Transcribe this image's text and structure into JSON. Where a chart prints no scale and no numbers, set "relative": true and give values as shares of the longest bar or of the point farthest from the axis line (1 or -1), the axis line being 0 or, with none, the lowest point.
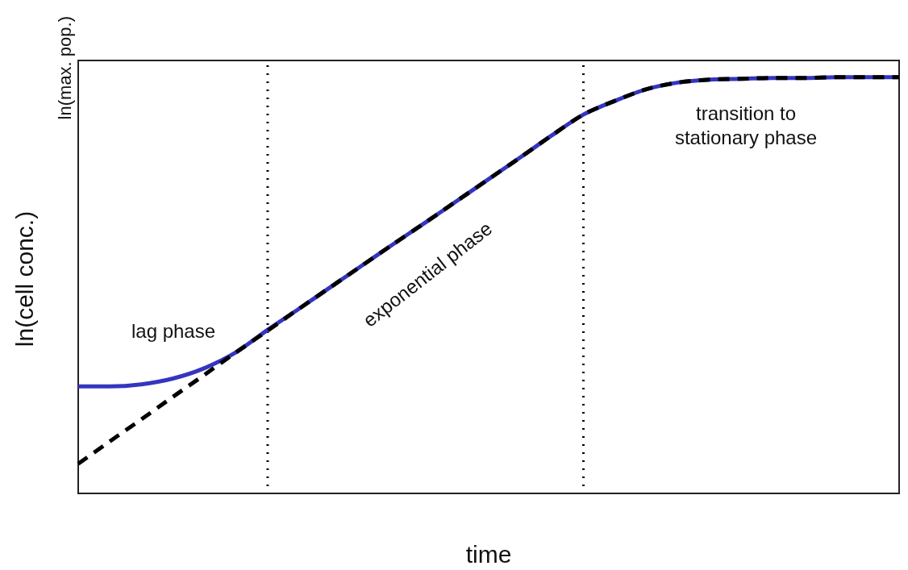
{
  "chart_data": {
    "type": "line",
    "xlabel": "time",
    "ylabel": "ln(cell conc.)",
    "relative": true,
    "marker": "none",
    "grid": false,
    "tick_labels": false,
    "categories": [
      null,
      null,
      null,
      null,
      null,
      null,
      null,
      null,
      null,
      null,
      null,
      null,
      null,
      null,
      null,
      null,
      null,
      null,
      null,
      null,
      null,
      null,
      null,
      null,
      null,
      null,
      null
    ],
    "series": [
      {
        "color": "#3535c0",
        "line_style": "solid",
        "values": [
          0.257,
          0.257,
          0.262,
          0.276,
          0.301,
          0.339,
          0.393,
          0.444,
          0.496,
          0.548,
          0.6,
          0.651,
          0.703,
          0.755,
          0.807,
          0.86,
          0.91,
          0.943,
          0.971,
          0.987,
          0.994,
          0.996,
          0.998,
          0.998,
          1,
          1,
          1
        ]
      },
      {
        "color": "#000000",
        "line_style": "dashed",
        "values": [
          0.071,
          0.125,
          0.178,
          0.232,
          0.285,
          0.339,
          0.391,
          0.444,
          0.496,
          0.548,
          0.6,
          0.651,
          0.703,
          0.755,
          0.807,
          0.86,
          0.91,
          0.943,
          0.971,
          0.987,
          0.994,
          0.996,
          0.998,
          0.998,
          1,
          1,
          1
        ]
      }
    ],
    "annotations": [
      "ln(max. pop.)",
      "lag phase",
      "exponential phase",
      "transition to\nstationary phase"
    ]
  }
}
